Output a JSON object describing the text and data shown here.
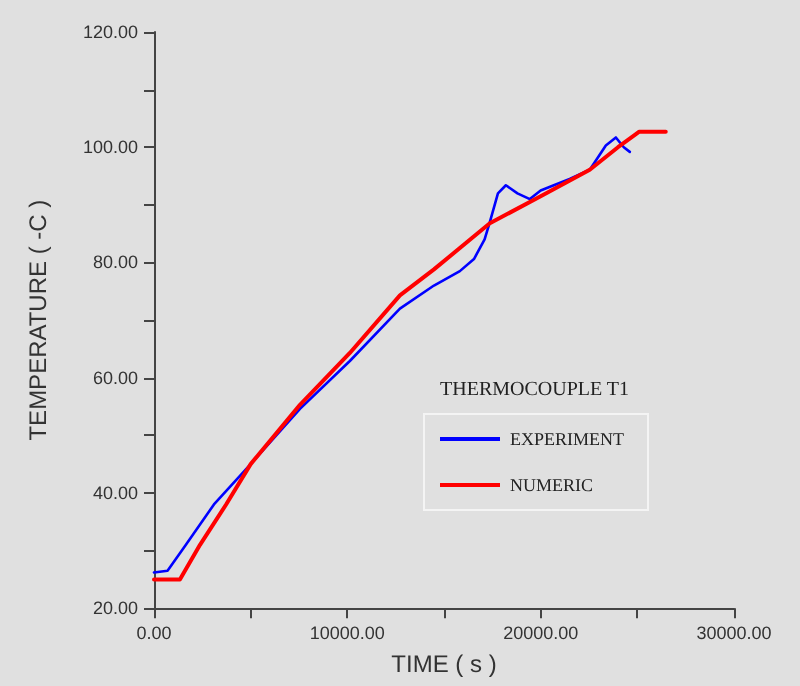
{
  "chart_data": {
    "type": "line",
    "xlabel": "TIME ( s )",
    "ylabel": "TEMPERATURE ( -C )",
    "legend_title": "THERMOCOUPLE T1",
    "legend": "right",
    "grid": false,
    "marker": "none",
    "line_style": "solid",
    "xlim": [
      0,
      30000
    ],
    "ylim": [
      20,
      120
    ],
    "xticks": [
      {
        "value": 0,
        "label": "0.00"
      },
      {
        "value": 5000,
        "label": null
      },
      {
        "value": 10000,
        "label": "10000.00"
      },
      {
        "value": 15000,
        "label": null
      },
      {
        "value": 20000,
        "label": "20000.00"
      },
      {
        "value": 25000,
        "label": null
      },
      {
        "value": 30000,
        "label": "30000.00"
      }
    ],
    "yticks": [
      {
        "value": 20,
        "label": "20.00"
      },
      {
        "value": 30,
        "label": null
      },
      {
        "value": 40,
        "label": "40.00"
      },
      {
        "value": 50,
        "label": null
      },
      {
        "value": 60,
        "label": "60.00"
      },
      {
        "value": 70,
        "label": null
      },
      {
        "value": 80,
        "label": "80.00"
      },
      {
        "value": 90,
        "label": null
      },
      {
        "value": 100,
        "label": "100.00"
      },
      {
        "value": 110,
        "label": null
      },
      {
        "value": 120,
        "label": "120.00"
      }
    ],
    "series": [
      {
        "name": "EXPERIMENT",
        "color": "#0000ff",
        "x": [
          0,
          700,
          1650,
          3100,
          5000,
          7550,
          10130,
          12720,
          14480,
          15820,
          16550,
          17100,
          17370,
          17790,
          18200,
          18800,
          19440,
          20000,
          20680,
          21500,
          22540,
          23370,
          23890,
          24300,
          24610
        ],
        "values": [
          26.2,
          26.5,
          31,
          38,
          45,
          54.6,
          62.9,
          72,
          76,
          78.5,
          80.6,
          84,
          87,
          92,
          93.4,
          92,
          91,
          92.5,
          93.4,
          94.5,
          96.1,
          100.3,
          101.7,
          100,
          99.2
        ]
      },
      {
        "name": "NUMERIC",
        "color": "#ff0000",
        "x": [
          0,
          1340,
          2380,
          3730,
          5000,
          7550,
          10130,
          12720,
          14480,
          17370,
          20000,
          22540,
          24000,
          24820,
          25100,
          26470
        ],
        "values": [
          25,
          25,
          31,
          38,
          45,
          55.3,
          64.3,
          74.3,
          78.8,
          86.8,
          91.5,
          96.1,
          100,
          102,
          102.7,
          102.7
        ]
      }
    ]
  }
}
